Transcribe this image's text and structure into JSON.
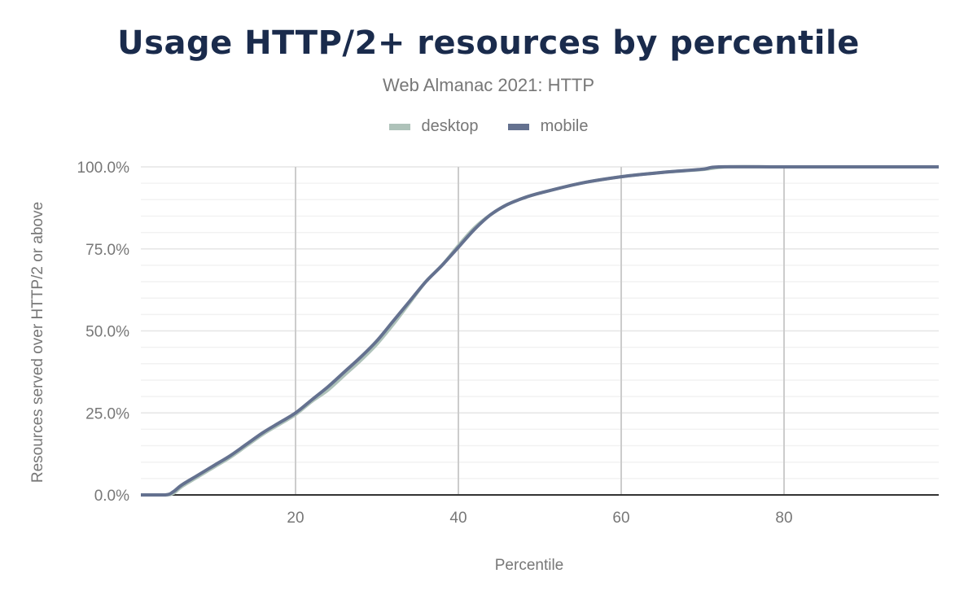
{
  "chart_data": {
    "type": "line",
    "title": "Usage HTTP/2+ resources by percentile",
    "subtitle": "Web Almanac 2021: HTTP",
    "xlabel": "Percentile",
    "ylabel": "Resources served over HTTP/2 or above",
    "xlim": [
      1,
      99
    ],
    "ylim": [
      0,
      100
    ],
    "x_ticks": [
      20,
      40,
      60,
      80
    ],
    "x_tick_labels": [
      "20",
      "40",
      "60",
      "80"
    ],
    "y_ticks": [
      0,
      25,
      50,
      75,
      100
    ],
    "y_tick_labels": [
      "0.0%",
      "25.0%",
      "50.0%",
      "75.0%",
      "100.0%"
    ],
    "grid": true,
    "legend_position": "top-center",
    "series": [
      {
        "name": "desktop",
        "color": "#aec2b9",
        "x": [
          1,
          4,
          5,
          6,
          8,
          10,
          12,
          14,
          16,
          18,
          20,
          22,
          24,
          26,
          28,
          30,
          32,
          34,
          36,
          38,
          40,
          42,
          44,
          46,
          48,
          50,
          55,
          60,
          65,
          70,
          73,
          80,
          90,
          99
        ],
        "y": [
          0,
          0,
          0.5,
          2.5,
          5.5,
          8.5,
          11.5,
          15,
          18.5,
          21.5,
          24.5,
          28.5,
          32,
          36.5,
          41,
          46,
          52,
          58.5,
          65,
          70,
          76,
          81.5,
          85.5,
          88.5,
          90.5,
          92,
          95,
          97,
          98.3,
          99.2,
          100,
          100,
          100,
          100
        ]
      },
      {
        "name": "mobile",
        "color": "#64718f",
        "x": [
          1,
          4,
          5,
          6,
          8,
          10,
          12,
          14,
          16,
          18,
          20,
          22,
          24,
          26,
          28,
          30,
          32,
          34,
          36,
          38,
          40,
          42,
          44,
          46,
          48,
          50,
          55,
          60,
          65,
          70,
          72,
          80,
          90,
          99
        ],
        "y": [
          0,
          0,
          1,
          3,
          6,
          9,
          12,
          15.5,
          19,
          22,
          25,
          29,
          33,
          37.5,
          42,
          47,
          53,
          59,
          65,
          70,
          75.5,
          81,
          85.5,
          88.5,
          90.5,
          92,
          95,
          97,
          98.3,
          99.3,
          100,
          100,
          100,
          100
        ]
      }
    ]
  }
}
